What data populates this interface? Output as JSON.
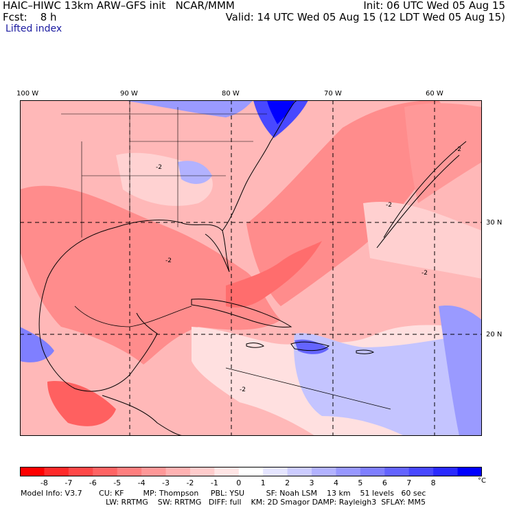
{
  "header": {
    "title": "HAIC–HIWC 13km ARW–GFS init   NCAR/MMM",
    "fcst": "Fcst:    8 h",
    "init": "Init: 06 UTC Wed 05 Aug 15",
    "valid": "Valid: 14 UTC Wed 05 Aug 15 (12 LDT Wed 05 Aug 15)",
    "field": "Lifted index"
  },
  "longitude_labels": [
    "100 W",
    "90 W",
    "80 W",
    "70 W",
    "60 W"
  ],
  "latitude_labels": [
    "30 N",
    "20 N"
  ],
  "contour_label": "-2",
  "colorbar": {
    "labels": [
      "-8",
      "-7",
      "-6",
      "-5",
      "-4",
      "-3",
      "-2",
      "-1",
      "0",
      "1",
      "2",
      "3",
      "4",
      "5",
      "6",
      "7",
      "8"
    ],
    "unit": "°C",
    "colors": [
      "#ff0000",
      "#ff2a2a",
      "#ff4848",
      "#ff6464",
      "#ff7f7f",
      "#ff9898",
      "#ffb2b2",
      "#ffcccc",
      "#ffe5e5",
      "#ffffff",
      "#e5e5ff",
      "#ccccff",
      "#b2b2ff",
      "#9898ff",
      "#7f7fff",
      "#6464ff",
      "#4848ff",
      "#2a2aff",
      "#0000ff"
    ]
  },
  "model_info": {
    "line1": "Model Info: V3.7       CU: KF        MP: Thompson     PBL: YSU         SF: Noah LSM    13 km    51 levels   60 sec",
    "line2": "LW: RRTMG    SW: RRTMG   DIFF: full    KM: 2D Smagor DAMP: Rayleigh3  SFLAY: MM5"
  }
}
